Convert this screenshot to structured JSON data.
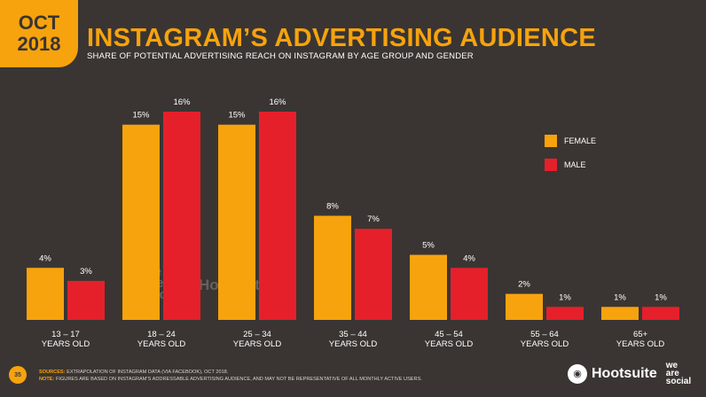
{
  "header": {
    "month": "OCT",
    "year": "2018",
    "title": "INSTAGRAM’S ADVERTISING AUDIENCE",
    "subtitle": "SHARE OF POTENTIAL ADVERTISING REACH ON INSTAGRAM BY AGE GROUP AND GENDER"
  },
  "colors": {
    "female": "#f7a30d",
    "male": "#e5202b",
    "background": "#3a3532",
    "accent": "#f7a30d"
  },
  "chart_data": {
    "type": "bar",
    "categories": [
      [
        "13 – 17",
        "YEARS OLD"
      ],
      [
        "18 – 24",
        "YEARS OLD"
      ],
      [
        "25 – 34",
        "YEARS OLD"
      ],
      [
        "35 – 44",
        "YEARS OLD"
      ],
      [
        "45 – 54",
        "YEARS OLD"
      ],
      [
        "55 – 64",
        "YEARS OLD"
      ],
      [
        "65+",
        "YEARS OLD"
      ]
    ],
    "series": [
      {
        "name": "FEMALE",
        "color": "#f7a30d",
        "values": [
          4,
          15,
          15,
          8,
          5,
          2,
          1
        ],
        "labels": [
          "4%",
          "15%",
          "15%",
          "8%",
          "5%",
          "2%",
          "1%"
        ]
      },
      {
        "name": "MALE",
        "color": "#e5202b",
        "values": [
          3,
          16,
          16,
          7,
          4,
          1,
          1
        ],
        "labels": [
          "3%",
          "16%",
          "16%",
          "7%",
          "4%",
          "1%",
          "1%"
        ]
      }
    ],
    "ylim": [
      0,
      16
    ],
    "legend": "right",
    "grid": false
  },
  "watermark": {
    "brand1": [
      "we",
      "are.",
      "social"
    ],
    "brand2": "Hootsuite"
  },
  "footer": {
    "page_number": "35",
    "sources_label": "SOURCES:",
    "sources_text": "EXTRAPOLATION OF INSTAGRAM DATA (VIA FACEBOOK), OCT 2018.",
    "note_label": "NOTE:",
    "note_text": "FIGURES ARE BASED ON INSTAGRAM’S ADDRESSABLE ADVERTISING AUDIENCE, AND MAY NOT BE REPRESENTATIVE OF ALL MONTHLY ACTIVE USERS.",
    "brand1": "Hootsuite",
    "brand2": [
      "we",
      "are",
      "social"
    ]
  }
}
